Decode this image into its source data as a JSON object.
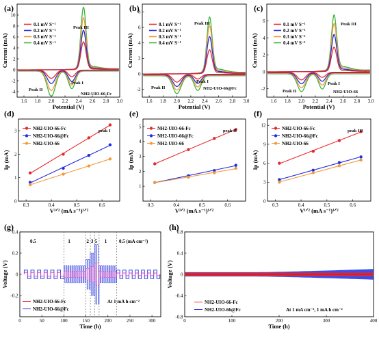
{
  "colors": {
    "red": "#e8262a",
    "blue": "#1f2ee0",
    "orange": "#f39a3c",
    "green": "#3db33b",
    "magenta": "#c23cc4"
  },
  "panels": {
    "a": {
      "letter": "(a)",
      "label": "NH2-UIO-66-Fc",
      "p1": "Peak I",
      "p2": "Peak II",
      "p3": "Peak III"
    },
    "b": {
      "letter": "(b)",
      "label": "NH2-UIO-66@Fc",
      "p1": "Peak I",
      "p2": "Peak II",
      "p3": "Peak III"
    },
    "c": {
      "letter": "(c)",
      "label": "NH2-UIO-66",
      "p1": "Peak I",
      "p2": "Peak II",
      "p3": "Peak III"
    },
    "d": {
      "letter": "(d)",
      "peak": "peak I"
    },
    "e": {
      "letter": "(e)",
      "peak": "peak II"
    },
    "f": {
      "letter": "(f)",
      "peak": "peak III"
    },
    "g": {
      "letter": "(g)",
      "note": "At 1 mA h cm⁻²",
      "rates": [
        "0.5",
        "1",
        "2",
        "3",
        "5",
        "1",
        "0.5 (mA cm⁻²)"
      ]
    },
    "h": {
      "letter": "(h)",
      "note": "At 1 mA cm⁻², 1 mA h cm⁻²"
    }
  },
  "cv_legend": [
    "0.1 mV S⁻¹",
    "0.2 mV S⁻¹",
    "0.3 mV S⁻¹",
    "0.4 mV S⁻¹"
  ],
  "fit_legend": [
    "NH2-UIO-66-Fc",
    "NH2-UIO-66@Fc",
    "NH2-UIO-66"
  ],
  "cycle_legend": [
    "NH2-UIO-66-Fc",
    "NH2-UIO-66@Fc"
  ],
  "labels": {
    "cv_x": "Potential (V)",
    "cv_y": "Current (mA)",
    "fit_x": "V¹ᐟ² (mA s⁻¹)¹ᐟ²",
    "fit_y": "Ip (mA)",
    "cyc_x": "Time (h)",
    "cyc_y": "Voltage (V)"
  },
  "chart_data": [
    {
      "id": "a",
      "type": "line",
      "xlabel": "Potential (V)",
      "ylabel": "Current (mA)",
      "xlim": [
        1.5,
        3.0
      ],
      "ylim": [
        -5,
        12
      ],
      "xticks": [
        1.6,
        1.8,
        2.0,
        2.2,
        2.4,
        2.6,
        2.8,
        3.0
      ],
      "yticks": [
        -4,
        -2,
        0,
        2,
        4,
        6,
        8,
        10
      ],
      "series": [
        {
          "name": "0.1 mV S⁻¹",
          "color": "red",
          "peak3": 5.0,
          "peak1": -1.2,
          "peak2": -1.5
        },
        {
          "name": "0.2 mV S⁻¹",
          "color": "blue",
          "peak3": 7.0,
          "peak1": -2.0,
          "peak2": -2.4
        },
        {
          "name": "0.3 mV S⁻¹",
          "color": "orange",
          "peak3": 9.2,
          "peak1": -2.6,
          "peak2": -3.6
        },
        {
          "name": "0.4 mV S⁻¹",
          "color": "green",
          "peak3": 11.0,
          "peak1": -3.2,
          "peak2": -4.6
        }
      ],
      "peak_positions": {
        "peak3": 2.47,
        "peak1": 2.3,
        "peak2": 2.0
      }
    },
    {
      "id": "b",
      "type": "line",
      "xlabel": "Potential (V)",
      "ylabel": "Current (mA)",
      "xlim": [
        1.5,
        3.0
      ],
      "ylim": [
        -3,
        9
      ],
      "xticks": [
        1.6,
        1.8,
        2.0,
        2.2,
        2.4,
        2.6,
        2.8,
        3.0
      ],
      "yticks": [
        -2,
        0,
        2,
        4,
        6,
        8
      ],
      "series": [
        {
          "name": "0.1 mV S⁻¹",
          "color": "red",
          "peak3": 3.0,
          "peak1": -0.6,
          "peak2": -1.0
        },
        {
          "name": "0.2 mV S⁻¹",
          "color": "blue",
          "peak3": 4.6,
          "peak1": -1.1,
          "peak2": -1.5
        },
        {
          "name": "0.3 mV S⁻¹",
          "color": "orange",
          "peak3": 5.9,
          "peak1": -1.5,
          "peak2": -1.9
        },
        {
          "name": "0.4 mV S⁻¹",
          "color": "green",
          "peak3": 6.9,
          "peak1": -1.9,
          "peak2": -2.3
        }
      ],
      "peak_positions": {
        "peak3": 2.47,
        "peak1": 2.3,
        "peak2": 2.0
      }
    },
    {
      "id": "c",
      "type": "line",
      "xlabel": "Potential (V)",
      "ylabel": "Current (mA)",
      "xlim": [
        1.5,
        3.0
      ],
      "ylim": [
        -3,
        8
      ],
      "xticks": [
        1.6,
        1.8,
        2.0,
        2.2,
        2.4,
        2.6,
        2.8,
        3.0
      ],
      "yticks": [
        -2,
        0,
        2,
        4,
        6
      ],
      "series": [
        {
          "name": "0.1 mV S⁻¹",
          "color": "red",
          "peak3": 2.8,
          "peak1": -0.6,
          "peak2": -0.9
        },
        {
          "name": "0.2 mV S⁻¹",
          "color": "blue",
          "peak3": 4.2,
          "peak1": -1.0,
          "peak2": -1.3
        },
        {
          "name": "0.3 mV S⁻¹",
          "color": "orange",
          "peak3": 5.4,
          "peak1": -1.4,
          "peak2": -1.7
        },
        {
          "name": "0.4 mV S⁻¹",
          "color": "green",
          "peak3": 6.3,
          "peak1": -1.8,
          "peak2": -2.1
        }
      ],
      "peak_positions": {
        "peak3": 2.47,
        "peak1": 2.3,
        "peak2": 2.0
      }
    },
    {
      "id": "d",
      "type": "scatter",
      "xlabel": "V¹ᐟ² (mA s⁻¹)¹ᐟ²",
      "ylabel": "Ip (mA)",
      "x": [
        0.316,
        0.447,
        0.548,
        0.632
      ],
      "xlim": [
        0.27,
        0.67
      ],
      "xticks": [
        0.3,
        0.4,
        0.5,
        0.6
      ],
      "ylim": [
        0,
        3.5
      ],
      "yticks": [
        0,
        1,
        2,
        3
      ],
      "series": [
        {
          "name": "NH2-UIO-66-Fc",
          "color": "red",
          "values": [
            1.2,
            2.0,
            2.7,
            3.25
          ]
        },
        {
          "name": "NH2-UIO-66@Fc",
          "color": "blue",
          "values": [
            0.8,
            1.4,
            1.95,
            2.4
          ]
        },
        {
          "name": "NH2-UIO-66",
          "color": "orange",
          "values": [
            0.7,
            1.15,
            1.5,
            1.8
          ]
        }
      ]
    },
    {
      "id": "e",
      "type": "scatter",
      "xlabel": "V¹ᐟ² (mA s⁻¹)¹ᐟ²",
      "ylabel": "Ip (mA)",
      "x": [
        0.316,
        0.447,
        0.548,
        0.632
      ],
      "xlim": [
        0.27,
        0.67
      ],
      "xticks": [
        0.3,
        0.4,
        0.5,
        0.6
      ],
      "ylim": [
        0,
        5.5
      ],
      "yticks": [
        1,
        2,
        3,
        4,
        5
      ],
      "series": [
        {
          "name": "NH2-UIO-66-Fc",
          "color": "red",
          "values": [
            2.5,
            3.45,
            4.2,
            4.8
          ]
        },
        {
          "name": "NH2-UIO-66@Fc",
          "color": "blue",
          "values": [
            1.25,
            1.7,
            2.05,
            2.4
          ]
        },
        {
          "name": "NH2-UIO-66",
          "color": "orange",
          "values": [
            1.25,
            1.6,
            1.9,
            2.2
          ]
        }
      ]
    },
    {
      "id": "f",
      "type": "scatter",
      "xlabel": "V¹ᐟ² (mA s⁻¹)¹ᐟ²",
      "ylabel": "Ip (mA)",
      "x": [
        0.316,
        0.447,
        0.548,
        0.632
      ],
      "xlim": [
        0.27,
        0.67
      ],
      "xticks": [
        0.3,
        0.4,
        0.5,
        0.6
      ],
      "ylim": [
        0,
        13
      ],
      "yticks": [
        0,
        3,
        6,
        9,
        12
      ],
      "series": [
        {
          "name": "NH2-UIO-66-Fc",
          "color": "red",
          "values": [
            6.0,
            7.9,
            9.6,
            11.0
          ]
        },
        {
          "name": "NH2-UIO-66@Fc",
          "color": "blue",
          "values": [
            3.4,
            4.9,
            6.1,
            7.0
          ]
        },
        {
          "name": "NH2-UIO-66",
          "color": "orange",
          "values": [
            3.0,
            4.5,
            5.6,
            6.5
          ]
        }
      ]
    },
    {
      "id": "g",
      "type": "line",
      "xlabel": "Time (h)",
      "ylabel": "Voltage (V)",
      "xlim": [
        0,
        320
      ],
      "xticks": [
        0,
        50,
        100,
        150,
        200,
        250,
        300
      ],
      "ylim": [
        -0.4,
        0.4
      ],
      "yticks": [
        -0.2,
        0.0,
        0.2,
        0.4
      ],
      "rate_boundaries": [
        100,
        150,
        160,
        170,
        180,
        220
      ],
      "series": [
        {
          "name": "NH2-UIO-66-Fc",
          "color": "red",
          "amplitude": [
            0.03,
            0.05,
            0.09,
            0.12,
            0.18,
            0.05,
            0.02
          ]
        },
        {
          "name": "NH2-UIO-66@Fc",
          "color": "blue",
          "amplitude": [
            0.04,
            0.08,
            0.14,
            0.2,
            0.28,
            0.08,
            0.04
          ]
        }
      ]
    },
    {
      "id": "h",
      "type": "line",
      "xlabel": "Time (h)",
      "ylabel": "Voltage (V)",
      "xlim": [
        0,
        400
      ],
      "xticks": [
        0,
        100,
        200,
        300,
        400
      ],
      "ylim": [
        -0.8,
        0.8
      ],
      "yticks": [
        -0.8,
        -0.4,
        0.0,
        0.4,
        0.8
      ],
      "series": [
        {
          "name": "NH2-UIO-66-Fc",
          "color": "red",
          "amplitude_start": 0.03,
          "amplitude_end": 0.04
        },
        {
          "name": "NH2-UIO-66@Fc",
          "color": "blue",
          "amplitude_start": 0.04,
          "amplitude_end": 0.1
        }
      ]
    }
  ]
}
